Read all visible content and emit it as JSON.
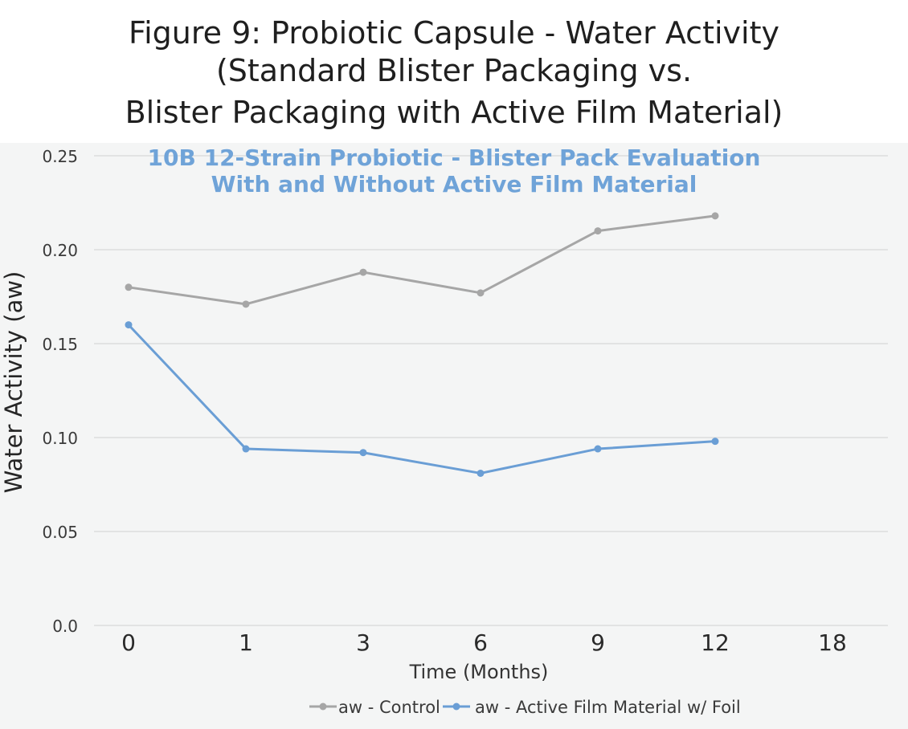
{
  "figure": {
    "title_lines": [
      "Figure 9: Probiotic Capsule - Water Activity",
      "(Standard Blister Packaging vs.",
      "Blister Packaging with Active Film Material)"
    ]
  },
  "chart_data": {
    "type": "line",
    "title": "10B 12-Strain Probiotic - Blister Pack Evaluation",
    "subtitle": "With and Without Active Film Material",
    "xlabel": "Time (Months)",
    "ylabel": "Water Activity (aw)",
    "categories": [
      "0",
      "1",
      "3",
      "6",
      "9",
      "12",
      "18"
    ],
    "ylim": [
      0,
      0.25
    ],
    "yticks": [
      0,
      0.05,
      0.1,
      0.15,
      0.2,
      0.25
    ],
    "ytick_labels": [
      "0.0",
      "0.05",
      "0.10",
      "0.15",
      "0.20",
      "0.25"
    ],
    "grid": true,
    "legend_position": "bottom",
    "series": [
      {
        "name": "aw - Control",
        "color": "#a6a6a6",
        "values": [
          0.18,
          0.171,
          0.188,
          0.177,
          0.21,
          0.218,
          null
        ]
      },
      {
        "name": "aw - Active Film Material w/ Foil",
        "color": "#6a9ed5",
        "values": [
          0.16,
          0.094,
          0.092,
          0.081,
          0.094,
          0.098,
          null
        ]
      }
    ]
  }
}
